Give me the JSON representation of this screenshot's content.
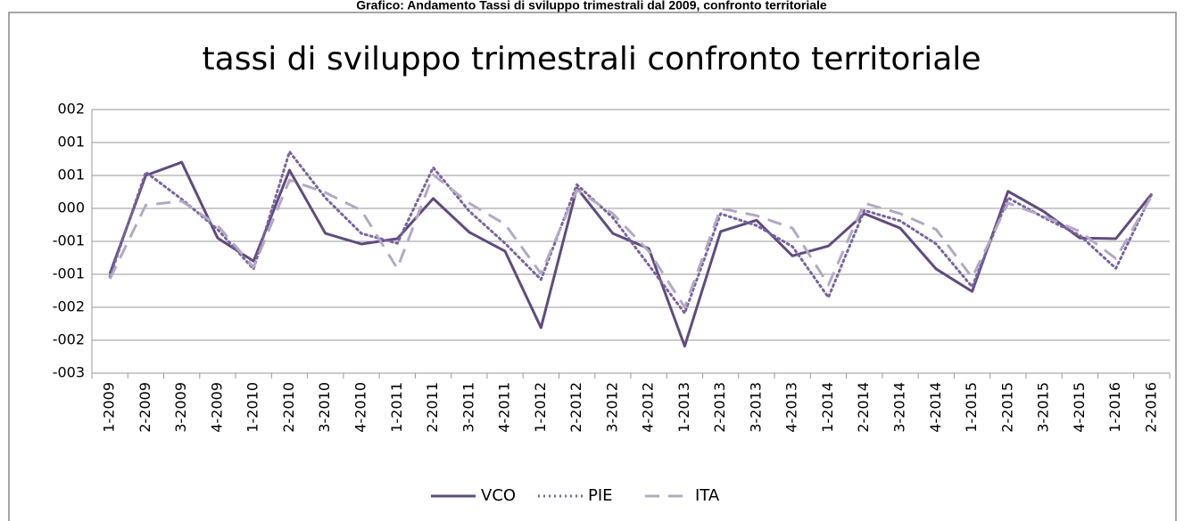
{
  "caption": "Grafico: Andamento Tassi di sviluppo trimestrali dal 2009, confronto territoriale",
  "chart_data": {
    "type": "line",
    "title": "tassi di sviluppo trimestrali confronto territoriale",
    "categories": [
      "1-2009",
      "2-2009",
      "3-2009",
      "4-2009",
      "1-2010",
      "2-2010",
      "3-2010",
      "4-2010",
      "1-2011",
      "2-2011",
      "3-2011",
      "4-2011",
      "1-2012",
      "2-2012",
      "3-2012",
      "4-2012",
      "1-2013",
      "2-2013",
      "3-2013",
      "4-2013",
      "1-2014",
      "2-2014",
      "3-2014",
      "4-2014",
      "1-2015",
      "2-2015",
      "3-2015",
      "4-2015",
      "1-2016",
      "2-2016"
    ],
    "series": [
      {
        "name": "VCO",
        "color": "#5f4b7e",
        "dash": "solid",
        "values": [
          -0.99,
          0.5,
          0.7,
          -0.45,
          -0.8,
          0.58,
          -0.38,
          -0.54,
          -0.46,
          0.15,
          -0.36,
          -0.65,
          -1.81,
          0.31,
          -0.38,
          -0.61,
          -2.09,
          -0.35,
          -0.18,
          -0.72,
          -0.57,
          -0.08,
          -0.3,
          -0.92,
          -1.26,
          0.26,
          -0.05,
          -0.45,
          -0.46,
          0.22
        ]
      },
      {
        "name": "PIE",
        "color": "#7a63a0",
        "dash": "dot",
        "values": [
          -1.04,
          0.55,
          0.14,
          -0.32,
          -0.92,
          0.86,
          0.16,
          -0.38,
          -0.53,
          0.62,
          -0.04,
          -0.53,
          -1.08,
          0.36,
          -0.14,
          -0.86,
          -1.59,
          -0.08,
          -0.26,
          -0.58,
          -1.35,
          -0.03,
          -0.19,
          -0.54,
          -1.19,
          0.16,
          -0.14,
          -0.41,
          -0.91,
          0.22
        ]
      },
      {
        "name": "ITA",
        "color": "#b3a9c4",
        "dash": "dash",
        "values": [
          -1.07,
          0.05,
          0.11,
          -0.26,
          -0.89,
          0.43,
          0.24,
          -0.03,
          -0.91,
          0.51,
          0.08,
          -0.24,
          -0.99,
          0.28,
          -0.08,
          -0.65,
          -1.5,
          0,
          -0.11,
          -0.3,
          -1.16,
          0.08,
          -0.08,
          -0.32,
          -1.05,
          0.08,
          -0.12,
          -0.35,
          -0.76,
          0.19
        ]
      }
    ],
    "ylim": [
      -2.5,
      1.5
    ],
    "yticks": [
      {
        "value": -2.5,
        "label": "-003"
      },
      {
        "value": -2,
        "label": "-002"
      },
      {
        "value": -1.5,
        "label": "-002"
      },
      {
        "value": -1,
        "label": "-001"
      },
      {
        "value": -0.5,
        "label": "-001"
      },
      {
        "value": 0,
        "label": "000"
      },
      {
        "value": 0.5,
        "label": "001"
      },
      {
        "value": 1,
        "label": "001"
      },
      {
        "value": 1.5,
        "label": "002"
      }
    ],
    "grid": true,
    "legend": "bottom"
  }
}
